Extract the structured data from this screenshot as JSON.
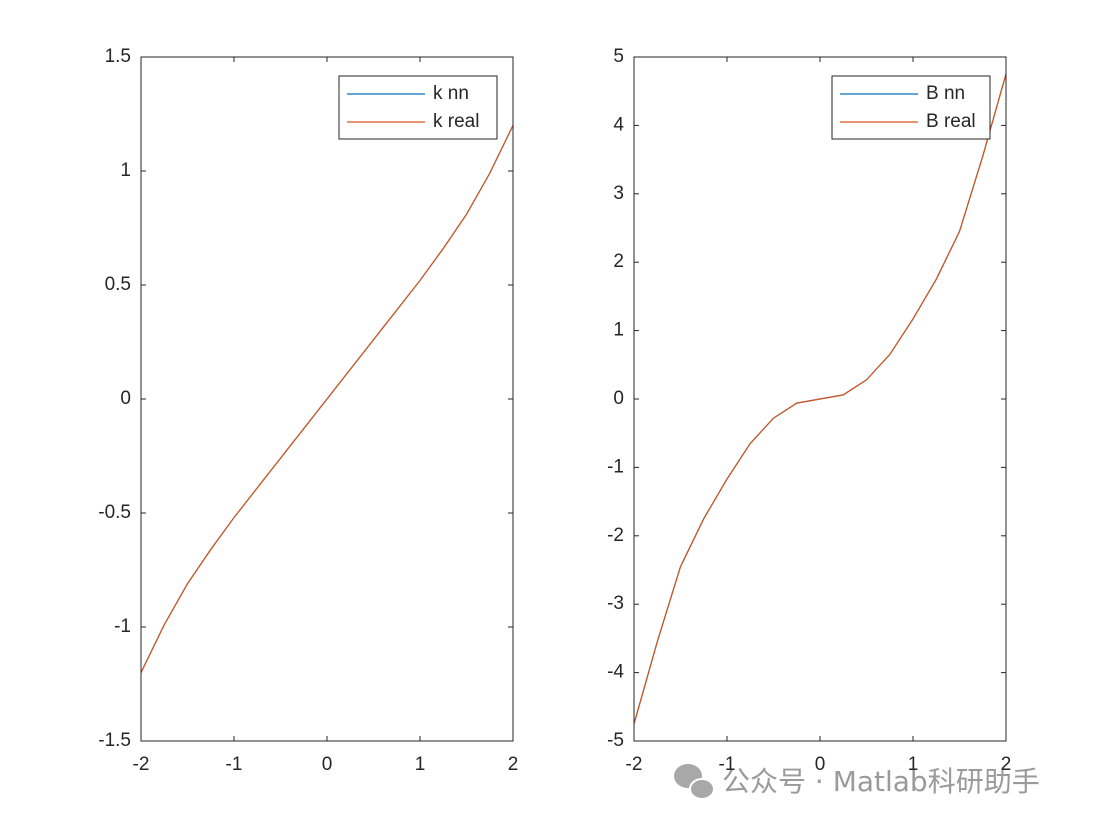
{
  "chart_data": [
    {
      "type": "line",
      "x": [
        -2,
        -1.75,
        -1.5,
        -1.25,
        -1,
        -0.75,
        -0.5,
        -0.25,
        0,
        0.25,
        0.5,
        0.75,
        1,
        1.25,
        1.5,
        1.75,
        2
      ],
      "series": [
        {
          "name": "k nn",
          "color": "#0072BD",
          "values": [
            -1.2,
            -0.99,
            -0.81,
            -0.66,
            -0.52,
            -0.39,
            -0.26,
            -0.13,
            0,
            0.13,
            0.26,
            0.39,
            0.52,
            0.66,
            0.81,
            0.99,
            1.2
          ]
        },
        {
          "name": "k real",
          "color": "#D95319",
          "values": [
            -1.2,
            -0.99,
            -0.81,
            -0.66,
            -0.52,
            -0.39,
            -0.26,
            -0.13,
            0,
            0.13,
            0.26,
            0.39,
            0.52,
            0.66,
            0.81,
            0.99,
            1.2
          ]
        }
      ],
      "xlim": [
        -2,
        2
      ],
      "xticks": [
        -2,
        -1,
        0,
        1,
        2
      ],
      "ylim": [
        -1.5,
        1.5
      ],
      "yticks": [
        -1.5,
        -1,
        -0.5,
        0,
        0.5,
        1,
        1.5
      ],
      "legend": "upper right",
      "grid": false
    },
    {
      "type": "line",
      "x": [
        -2,
        -1.75,
        -1.5,
        -1.25,
        -1,
        -0.75,
        -0.5,
        -0.25,
        0,
        0.25,
        0.5,
        0.75,
        1,
        1.25,
        1.5,
        1.75,
        2
      ],
      "series": [
        {
          "name": "B nn",
          "color": "#0072BD",
          "values": [
            -4.75,
            -3.55,
            -2.45,
            -1.75,
            -1.17,
            -0.65,
            -0.28,
            -0.06,
            0,
            0.06,
            0.28,
            0.65,
            1.17,
            1.75,
            2.45,
            3.55,
            4.75
          ]
        },
        {
          "name": "B real",
          "color": "#D95319",
          "values": [
            -4.75,
            -3.55,
            -2.45,
            -1.75,
            -1.17,
            -0.65,
            -0.28,
            -0.06,
            0,
            0.06,
            0.28,
            0.65,
            1.17,
            1.75,
            2.45,
            3.55,
            4.75
          ]
        }
      ],
      "xlim": [
        -2,
        2
      ],
      "xticks": [
        -2,
        -1,
        0,
        1,
        2
      ],
      "ylim": [
        -5,
        5
      ],
      "yticks": [
        -5,
        -4,
        -3,
        -2,
        -1,
        0,
        1,
        2,
        3,
        4,
        5
      ],
      "legend": "upper right",
      "grid": false
    }
  ],
  "watermark": "公众号 · Matlab科研助手"
}
